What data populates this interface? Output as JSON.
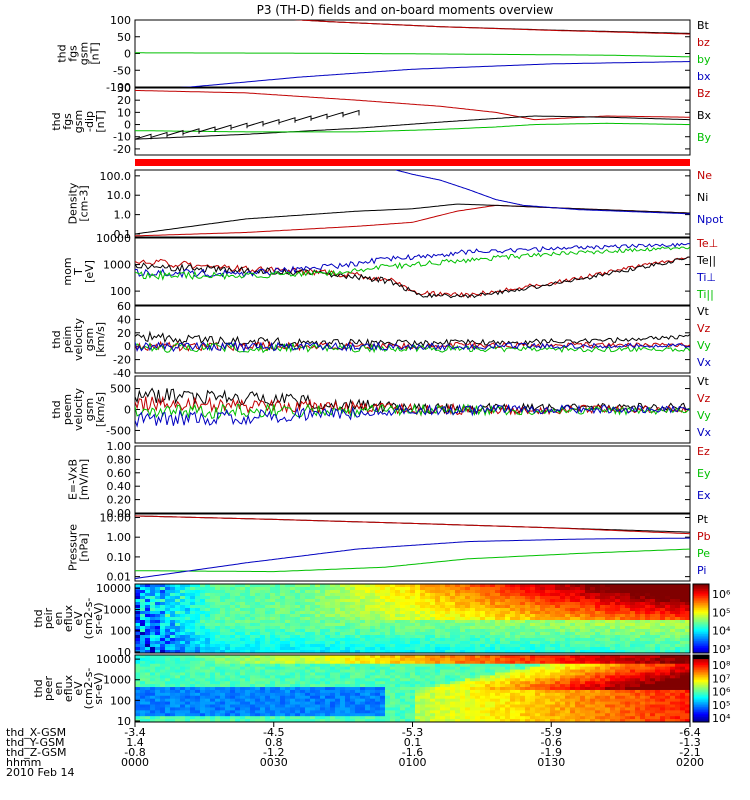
{
  "title": "P3 (TH-D) fields and on-board moments overview",
  "chart_data": {
    "type": "line",
    "panels": [
      {
        "ylabel": [
          "thd",
          "fgs",
          "gsm",
          "[nT]"
        ],
        "yticks": [
          "100",
          "50",
          "0",
          "-50",
          "-100"
        ],
        "ylim": [
          -100,
          100
        ],
        "series": [
          {
            "name": "Bt",
            "color": "#000000",
            "x": [
              0.2,
              0.35,
              0.55,
              0.75,
              1.0
            ],
            "y": [
              110,
              95,
              80,
              70,
              60
            ]
          },
          {
            "name": "bz",
            "color": "#c00000",
            "x": [
              0.2,
              0.35,
              0.55,
              0.75,
              1.0
            ],
            "y": [
              110,
              95,
              80,
              69,
              58
            ]
          },
          {
            "name": "by",
            "color": "#00c000",
            "x": [
              0.0,
              0.3,
              0.6,
              0.85,
              1.0
            ],
            "y": [
              2,
              1,
              -2,
              -5,
              -10
            ]
          },
          {
            "name": "bx",
            "color": "#0000c0",
            "x": [
              0.0,
              0.1,
              0.3,
              0.5,
              0.75,
              1.0
            ],
            "y": [
              -108,
              -100,
              -70,
              -47,
              -31,
              -24
            ]
          }
        ]
      },
      {
        "ylabel": [
          "thd",
          "fgs",
          "gsm",
          "-dip",
          "[nT]"
        ],
        "yticks": [
          "30",
          "20",
          "10",
          "0",
          "-10",
          "-20"
        ],
        "ylim": [
          -25,
          30
        ],
        "series": [
          {
            "name": "Bz",
            "color": "#c00000",
            "x": [
              0.0,
              0.2,
              0.4,
              0.55,
              0.65,
              0.72,
              0.85,
              1.0
            ],
            "y": [
              28,
              26,
              20,
              15,
              10,
              4,
              7,
              6
            ]
          },
          {
            "name": "Bx",
            "color": "#000000",
            "x": [
              0.0,
              0.2,
              0.4,
              0.55,
              0.65,
              0.72,
              0.85,
              1.0
            ],
            "y": [
              -12,
              -8,
              -3,
              2,
              5,
              7,
              6,
              4
            ]
          },
          {
            "name": "By",
            "color": "#00c000",
            "x": [
              0.0,
              0.2,
              0.4,
              0.55,
              0.65,
              0.72,
              0.85,
              1.0
            ],
            "y": [
              -5,
              -6,
              -6,
              -4,
              -2,
              0,
              1,
              0
            ]
          }
        ]
      },
      {
        "ylabel": [
          "Density",
          "[cm-3]"
        ],
        "yticks": [
          "100.0",
          "10.0",
          "1.0",
          "0.1"
        ],
        "log": true,
        "ylim": [
          0.07,
          200
        ],
        "series": [
          {
            "name": "Ne",
            "color": "#c00000",
            "x": [
              0.0,
              0.2,
              0.4,
              0.5,
              0.58,
              0.65,
              0.8,
              1.0
            ],
            "y": [
              0.08,
              0.12,
              0.25,
              0.4,
              1.5,
              3.0,
              2.0,
              1.2
            ]
          },
          {
            "name": "Ni",
            "color": "#000000",
            "x": [
              0.0,
              0.2,
              0.4,
              0.5,
              0.58,
              0.65,
              0.8,
              1.0
            ],
            "y": [
              0.1,
              0.6,
              1.5,
              2.0,
              3.5,
              3.0,
              2.0,
              1.2
            ]
          },
          {
            "name": "Npot",
            "color": "#0000c0",
            "x": [
              0.47,
              0.5,
              0.55,
              0.6,
              0.65,
              0.7,
              0.8,
              1.0
            ],
            "y": [
              200,
              120,
              60,
              20,
              6,
              3,
              1.8,
              1.1
            ]
          }
        ]
      },
      {
        "ylabel": [
          "mom",
          "T",
          "[eV]"
        ],
        "yticks": [
          "10000",
          "1000",
          "100"
        ],
        "log": true,
        "ylim": [
          30,
          10000
        ],
        "series": [
          {
            "name": "Te⊥",
            "color": "#c00000",
            "x": [
              0.0,
              0.2,
              0.35,
              0.45,
              0.52,
              0.6,
              0.75,
              0.9,
              1.0
            ],
            "y": [
              1300,
              700,
              500,
              300,
              80,
              70,
              200,
              800,
              2000
            ]
          },
          {
            "name": "Te||",
            "color": "#000000",
            "x": [
              0.0,
              0.2,
              0.35,
              0.45,
              0.52,
              0.6,
              0.75,
              0.9,
              1.0
            ],
            "y": [
              900,
              600,
              450,
              250,
              70,
              60,
              180,
              700,
              1800
            ]
          },
          {
            "name": "Ti⊥",
            "color": "#0000c0",
            "x": [
              0.0,
              0.2,
              0.35,
              0.45,
              0.6,
              0.75,
              0.9,
              1.0
            ],
            "y": [
              500,
              450,
              800,
              1500,
              3000,
              4000,
              5000,
              5500
            ]
          },
          {
            "name": "Ti||",
            "color": "#00c000",
            "x": [
              0.0,
              0.2,
              0.35,
              0.45,
              0.6,
              0.75,
              0.9,
              1.0
            ],
            "y": [
              400,
              380,
              500,
              800,
              1500,
              2500,
              3500,
              4500
            ]
          }
        ]
      },
      {
        "ylabel": [
          "thd",
          "peim",
          "velocity",
          "gsm",
          "[km/s]"
        ],
        "yticks": [
          "60",
          "40",
          "20",
          "0",
          "-20",
          "-40"
        ],
        "ylim": [
          -40,
          60
        ],
        "series": [
          {
            "name": "Vt",
            "color": "#000000",
            "x": [
              0.0,
              0.1,
              0.3,
              0.5,
              0.7,
              0.9,
              1.0
            ],
            "y": [
              15,
              10,
              5,
              4,
              6,
              10,
              15
            ]
          },
          {
            "name": "Vz",
            "color": "#c00000",
            "x": [
              0.0,
              0.3,
              0.6,
              1.0
            ],
            "y": [
              0,
              0,
              1,
              2
            ]
          },
          {
            "name": "Vy",
            "color": "#00c000",
            "x": [
              0.0,
              0.3,
              0.6,
              1.0
            ],
            "y": [
              -2,
              -3,
              -4,
              -5
            ]
          },
          {
            "name": "Vx",
            "color": "#0000c0",
            "x": [
              0.0,
              0.3,
              0.6,
              1.0
            ],
            "y": [
              0,
              -1,
              0,
              1
            ]
          }
        ]
      },
      {
        "ylabel": [
          "thd",
          "peem",
          "velocity",
          "gsm",
          "[km/s]"
        ],
        "yticks": [
          "500",
          "0",
          "-500"
        ],
        "ylim": [
          -800,
          800
        ],
        "series": [
          {
            "name": "Vt",
            "color": "#000000",
            "x": [
              0.0,
              0.2,
              0.4,
              0.5,
              0.7,
              1.0
            ],
            "y": [
              350,
              280,
              100,
              20,
              30,
              80
            ]
          },
          {
            "name": "Vz",
            "color": "#c00000",
            "x": [
              0.0,
              0.2,
              0.4,
              0.5,
              0.7,
              1.0
            ],
            "y": [
              150,
              100,
              40,
              0,
              0,
              10
            ]
          },
          {
            "name": "Vy",
            "color": "#00c000",
            "x": [
              0.0,
              0.2,
              0.4,
              0.5,
              0.7,
              1.0
            ],
            "y": [
              -50,
              -40,
              -20,
              0,
              -20,
              -40
            ]
          },
          {
            "name": "Vx",
            "color": "#0000c0",
            "x": [
              0.0,
              0.2,
              0.4,
              0.5,
              0.7,
              1.0
            ],
            "y": [
              -230,
              -180,
              -80,
              -10,
              0,
              10
            ]
          }
        ]
      },
      {
        "ylabel": [
          "E=-VxB",
          "[mV/m]"
        ],
        "yticks": [
          "1.00",
          "0.80",
          "0.60",
          "0.40",
          "0.20",
          "0.00"
        ],
        "ylim": [
          0,
          1
        ],
        "series": [
          {
            "name": "Ez",
            "color": "#c00000",
            "x": [],
            "y": []
          },
          {
            "name": "Ey",
            "color": "#00c000",
            "x": [],
            "y": []
          },
          {
            "name": "Ex",
            "color": "#0000c0",
            "x": [],
            "y": []
          }
        ]
      },
      {
        "ylabel": [
          "Pressure",
          "[nPa]"
        ],
        "yticks": [
          "10.00",
          "1.00",
          "0.10",
          "0.01"
        ],
        "log": true,
        "ylim": [
          0.006,
          15
        ],
        "series": [
          {
            "name": "Pt",
            "color": "#000000",
            "x": [
              0.0,
              0.25,
              0.5,
              0.75,
              1.0
            ],
            "y": [
              12,
              8,
              5,
              3,
              1.8
            ]
          },
          {
            "name": "Pb",
            "color": "#c00000",
            "x": [
              0.0,
              0.25,
              0.5,
              0.75,
              1.0
            ],
            "y": [
              12,
              8,
              5,
              3,
              1.5
            ]
          },
          {
            "name": "Pe",
            "color": "#00c000",
            "x": [
              0.0,
              0.25,
              0.45,
              0.6,
              0.8,
              1.0
            ],
            "y": [
              0.02,
              0.018,
              0.03,
              0.08,
              0.15,
              0.25
            ]
          },
          {
            "name": "Pi",
            "color": "#0000c0",
            "x": [
              0.0,
              0.2,
              0.4,
              0.6,
              0.8,
              1.0
            ],
            "y": [
              0.008,
              0.05,
              0.25,
              0.6,
              0.8,
              0.9
            ]
          }
        ]
      }
    ],
    "spectrograms": [
      {
        "name": "ion-spectrogram",
        "ylabel": [
          "thd",
          "peir",
          "en",
          "eflux",
          "eV",
          "(cm2-s-",
          "sr-eV)"
        ],
        "yticks": [
          "10000",
          "1000",
          "100",
          "10"
        ],
        "colorbar_ticks": [
          "10⁶",
          "10⁵",
          "10⁴",
          "10³"
        ]
      },
      {
        "name": "electron-spectrogram",
        "ylabel": [
          "thd",
          "peer",
          "en",
          "eflux",
          "eV",
          "(cm2-s-",
          "sr-eV)"
        ],
        "yticks": [
          "10000",
          "1000",
          "100",
          "10"
        ],
        "colorbar_ticks": [
          "10⁸",
          "10⁷",
          "10⁶",
          "10⁵",
          "10⁴"
        ]
      }
    ],
    "xaxis": {
      "row_labels": [
        "thd_X-GSM",
        "thd_Y-GSM",
        "thd_Z-GSM",
        "hhmm",
        "2010 Feb 14"
      ],
      "columns": [
        [
          "-3.4",
          "1.4",
          "-0.8",
          "0000"
        ],
        [
          "-4.5",
          "0.8",
          "-1.2",
          "0030"
        ],
        [
          "-5.3",
          "0.1",
          "-1.6",
          "0100"
        ],
        [
          "-5.9",
          "-0.6",
          "-1.9",
          "0130"
        ],
        [
          "-6.4",
          "-1.3",
          "-2.1",
          "0200"
        ]
      ]
    }
  }
}
